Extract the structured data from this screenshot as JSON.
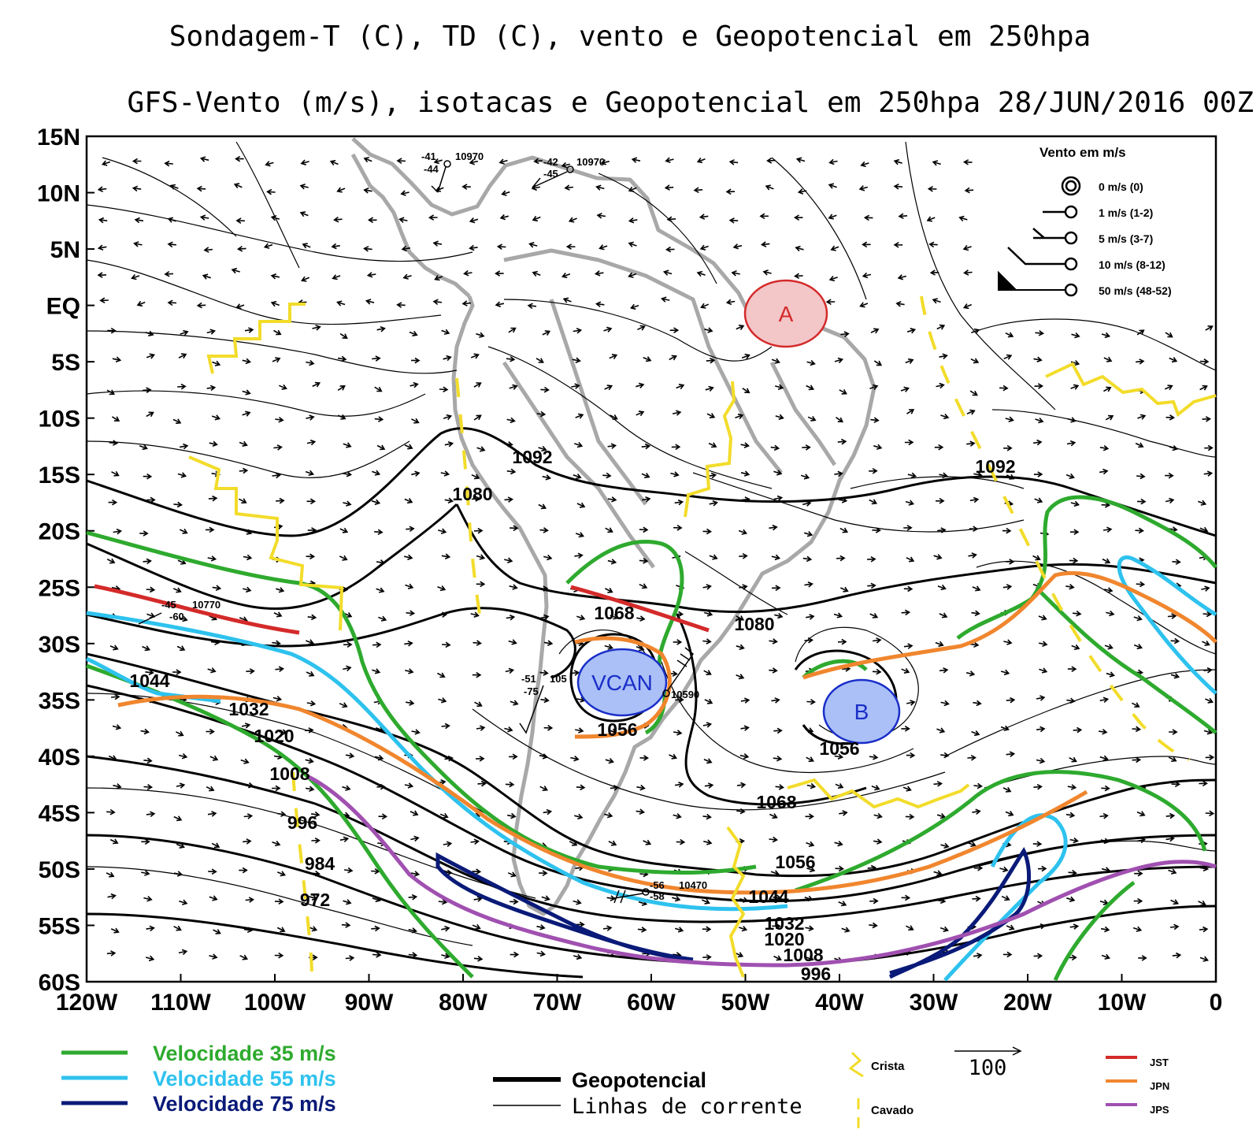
{
  "title_line1": "Sondagem-T (C), TD (C), vento e Geopotencial em 250hpa",
  "title_line2": "GFS-Vento (m/s), isotacas e Geopotencial em 250hpa 28/JUN/2016 00Z",
  "lat_labels": [
    "15N",
    "10N",
    "5N",
    "EQ",
    "5S",
    "10S",
    "15S",
    "20S",
    "25S",
    "30S",
    "35S",
    "40S",
    "45S",
    "50S",
    "55S",
    "60S"
  ],
  "lon_labels": [
    "120W",
    "110W",
    "100W",
    "90W",
    "80W",
    "70W",
    "60W",
    "50W",
    "40W",
    "30W",
    "20W",
    "10W",
    "0"
  ],
  "contour_labels": [
    "1092",
    "1080",
    "1092",
    "1068",
    "1080",
    "1056",
    "1056",
    "1068",
    "1044",
    "1032",
    "1020",
    "1008",
    "996",
    "984",
    "972",
    "1056",
    "1044",
    "1032",
    "1020",
    "1008",
    "996"
  ],
  "station_labels": [
    {
      "t": "-41",
      "v": "10970"
    },
    {
      "t": "-42",
      "v": "10970"
    },
    {
      "t": "-45",
      "v": "10770"
    },
    {
      "t": "-51",
      "v": "105"
    },
    {
      "t": "",
      "v": "10590"
    },
    {
      "t": "-56",
      "v": "10470"
    }
  ],
  "station_extra": [
    "-44",
    "-45",
    "-60",
    "-75",
    "-58"
  ],
  "systems": {
    "high": "A",
    "low": "B",
    "vcan": "VCAN"
  },
  "wind_legend": {
    "title": "Vento em m/s",
    "items": [
      "0 m/s (0)",
      "1 m/s (1-2)",
      "5 m/s (3-7)",
      "10 m/s (8-12)",
      "50 m/s (48-52)"
    ]
  },
  "legend": {
    "isotach_35": "Velocidade 35 m/s",
    "isotach_55": "Velocidade 55 m/s",
    "isotach_75": "Velocidade 75 m/s",
    "geopotential": "Geopotencial",
    "streamlines": "Linhas de corrente",
    "ridge": "Crista",
    "trough": "Cavado",
    "vector_scale": "100",
    "jst": "JST",
    "jpn": "JPN",
    "jps": "JPS"
  },
  "colors": {
    "isotach_35": "#2eaa2e",
    "isotach_55": "#2ec2ee",
    "isotach_75": "#0a1a78",
    "jst": "#d42a2a",
    "jpn": "#f0862e",
    "jps": "#a050b0",
    "ridge_trough": "#f2dc2a",
    "high_fill": "#f3c6c8",
    "high_stroke": "#d42a2a",
    "low_fill": "#aac0f6",
    "low_stroke": "#1a2ec8",
    "coast": "#a8a8a8"
  }
}
